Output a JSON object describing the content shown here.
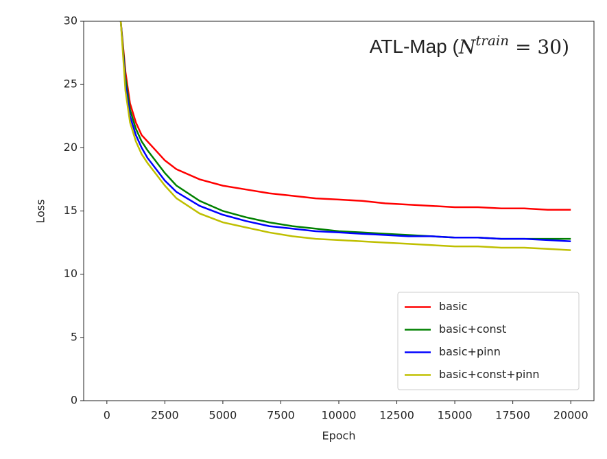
{
  "chart_data": {
    "type": "line",
    "title": [
      "ATL-Map (",
      "N",
      "train",
      " = 30)"
    ],
    "x_label": "Epoch",
    "y_label": "Loss",
    "x": [
      600,
      800,
      1000,
      1250,
      1500,
      1750,
      2000,
      2500,
      3000,
      4000,
      5000,
      6000,
      7000,
      8000,
      9000,
      10000,
      11000,
      12000,
      13000,
      14000,
      15000,
      16000,
      17000,
      18000,
      19000,
      20000
    ],
    "series": [
      {
        "name": "basic",
        "color": "#ff0000",
        "values": [
          30,
          26,
          23.5,
          22,
          21,
          20.5,
          20,
          19,
          18.3,
          17.5,
          17,
          16.7,
          16.4,
          16.2,
          16,
          15.9,
          15.8,
          15.6,
          15.5,
          15.4,
          15.3,
          15.3,
          15.2,
          15.2,
          15.1,
          15.1
        ]
      },
      {
        "name": "basic+const",
        "color": "#008000",
        "values": [
          30,
          25.5,
          23,
          21.5,
          20.5,
          19.8,
          19.2,
          18,
          17,
          15.8,
          15,
          14.5,
          14.1,
          13.8,
          13.6,
          13.4,
          13.3,
          13.2,
          13.1,
          13,
          12.9,
          12.9,
          12.8,
          12.8,
          12.8,
          12.8
        ]
      },
      {
        "name": "basic+pinn",
        "color": "#0000ff",
        "values": [
          30,
          25,
          22.5,
          21,
          20,
          19.2,
          18.6,
          17.4,
          16.5,
          15.4,
          14.7,
          14.2,
          13.8,
          13.6,
          13.4,
          13.3,
          13.2,
          13.1,
          13,
          13,
          12.9,
          12.9,
          12.8,
          12.8,
          12.7,
          12.6
        ]
      },
      {
        "name": "basic+const+pinn",
        "color": "#bfbf00",
        "values": [
          30,
          24.5,
          22,
          20.5,
          19.5,
          18.8,
          18.2,
          17,
          16,
          14.8,
          14.1,
          13.7,
          13.3,
          13,
          12.8,
          12.7,
          12.6,
          12.5,
          12.4,
          12.3,
          12.2,
          12.2,
          12.1,
          12.1,
          12,
          11.9
        ]
      }
    ],
    "xlim": [
      -1000,
      21000
    ],
    "ylim": [
      0,
      30
    ],
    "xticks": [
      0,
      2500,
      5000,
      7500,
      10000,
      12500,
      15000,
      17500,
      20000
    ],
    "yticks": [
      0,
      5,
      10,
      15,
      20,
      25,
      30
    ],
    "legend": "lower right"
  }
}
